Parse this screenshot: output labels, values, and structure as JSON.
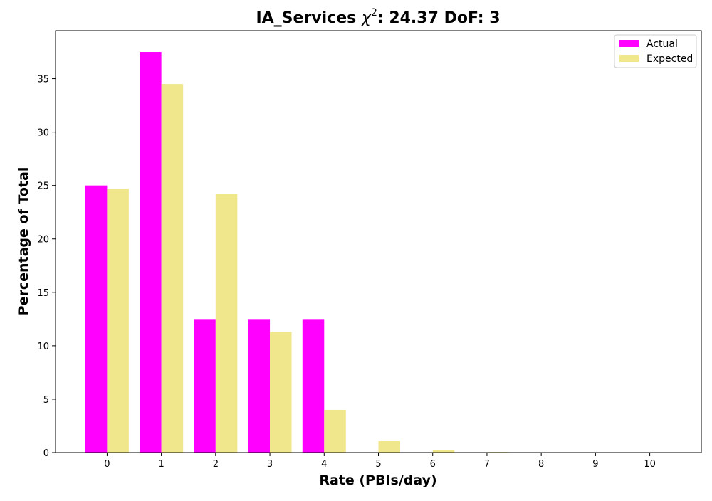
{
  "chart_data": {
    "type": "bar",
    "title": "IA_Services χ²: 24.37 DoF: 3",
    "title_parts": {
      "prefix": "IA_Services ",
      "chi": "χ",
      "sup": "2",
      "suffix": ": 24.37 DoF: 3"
    },
    "xlabel": "Rate (PBIs/day)",
    "ylabel": "Percentage of Total",
    "categories": [
      "0",
      "1",
      "2",
      "3",
      "4",
      "5",
      "6",
      "7",
      "8",
      "9",
      "10"
    ],
    "series": [
      {
        "name": "Actual",
        "color": "#ff00ff",
        "values": [
          25.0,
          37.5,
          12.5,
          12.5,
          12.5,
          0,
          0,
          0,
          0,
          0,
          0
        ]
      },
      {
        "name": "Expected",
        "color": "#f0e68c",
        "values": [
          24.7,
          34.5,
          24.2,
          11.3,
          4.0,
          1.1,
          0.25,
          0.05,
          0.0,
          0.0,
          0.0
        ]
      }
    ],
    "ylim": [
      0,
      39.5
    ],
    "yticks": [
      0,
      5,
      10,
      15,
      20,
      25,
      30,
      35
    ],
    "xlim": [
      -0.95,
      10.95
    ],
    "grid": false,
    "legend_position": "top-right"
  }
}
